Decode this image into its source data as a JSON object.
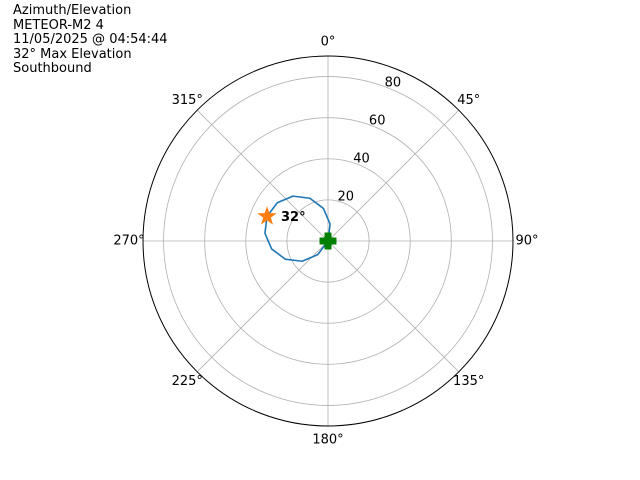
{
  "title_lines": [
    "Azimuth/Elevation",
    "METEOR-M2 4",
    "11/05/2025 @ 04:54:44",
    "32° Max Elevation",
    "Southbound"
  ],
  "chart_data": {
    "type": "polar-line",
    "theta_zero": "north",
    "theta_direction": "clockwise",
    "rlim": [
      0,
      90
    ],
    "grid": true,
    "angle_ticks": [
      0,
      45,
      90,
      135,
      180,
      225,
      270,
      315
    ],
    "angle_tick_labels": [
      "0°",
      "45°",
      "90°",
      "135°",
      "180°",
      "225°",
      "270°",
      "315°"
    ],
    "radial_ticks": [
      20,
      40,
      60,
      80
    ],
    "radial_tick_labels": [
      "20",
      "40",
      "60",
      "80"
    ],
    "track": {
      "color": "#1f77b4",
      "azimuth": [
        22,
        7,
        352,
        337,
        322,
        307,
        292,
        277,
        262,
        247,
        232,
        217,
        202
      ],
      "elevation": [
        0,
        8.3,
        16,
        22.6,
        27.7,
        30.9,
        32,
        30.9,
        27.7,
        22.6,
        16,
        8.3,
        0
      ]
    },
    "max_marker": {
      "azimuth": 292,
      "elevation": 32,
      "color": "#ff7f0e",
      "marker": "star",
      "label": "32°"
    },
    "start_marker": {
      "azimuth": 0,
      "elevation": 0,
      "color": "#008000",
      "marker": "plus-filled"
    }
  }
}
